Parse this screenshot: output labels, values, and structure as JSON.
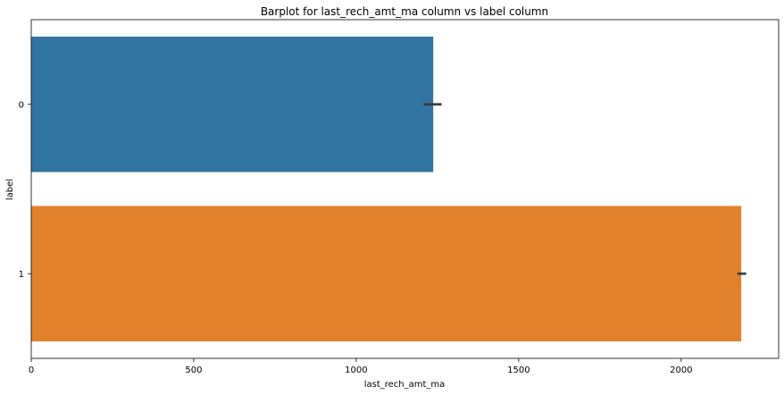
{
  "chart_data": {
    "type": "bar",
    "orientation": "horizontal",
    "title": "Barplot for last_rech_amt_ma column vs label column",
    "xlabel": "last_rech_amt_ma",
    "ylabel": "label",
    "categories": [
      "0",
      "1"
    ],
    "values": [
      1237,
      2185
    ],
    "error_bars": [
      [
        1207,
        1263
      ],
      [
        2173,
        2200
      ]
    ],
    "colors": [
      "#3274a1",
      "#e1812c"
    ],
    "error_color": "#3d3d3d",
    "xlim": [
      0,
      2300
    ],
    "xticks": [
      0,
      500,
      1000,
      1500,
      2000
    ],
    "grid": false
  }
}
